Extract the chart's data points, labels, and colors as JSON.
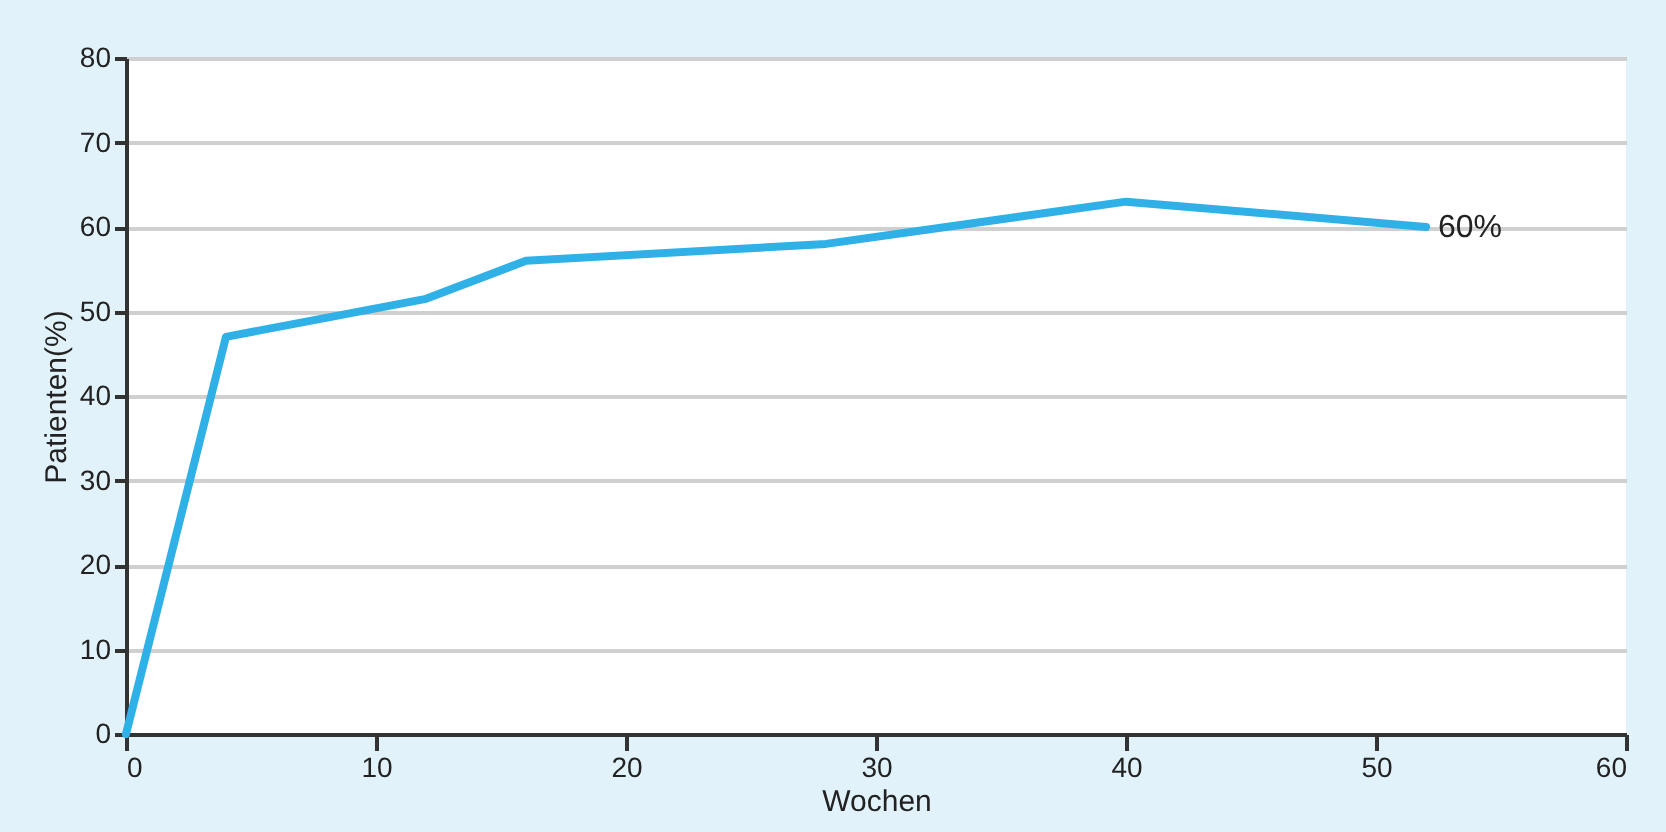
{
  "chart_data": {
    "type": "line",
    "xlabel": "Wochen",
    "ylabel": "Patienten(%)",
    "x": [
      0,
      4,
      12,
      16,
      28,
      40,
      52
    ],
    "series": [
      {
        "color": "#2fb0e6",
        "values": [
          0,
          47,
          51.5,
          56,
          58,
          63,
          60
        ]
      }
    ],
    "annotations": [
      {
        "text": "60%",
        "x": 52,
        "y": 60
      }
    ],
    "xlim": [
      0,
      60
    ],
    "xticks": [
      0,
      10,
      20,
      30,
      40,
      50,
      60
    ],
    "ylim": [
      0,
      80
    ],
    "yticks": [
      0,
      10,
      20,
      30,
      40,
      50,
      60,
      70,
      80
    ],
    "grid": "y",
    "marker": "none",
    "line_style": "solid"
  }
}
